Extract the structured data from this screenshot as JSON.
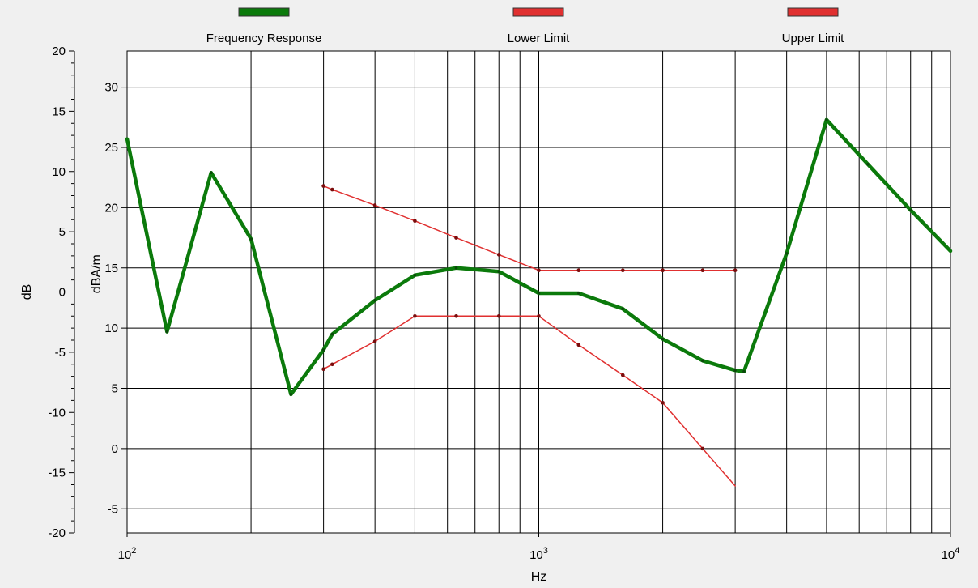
{
  "chart_data": {
    "type": "line",
    "x_scale": "log",
    "xlim": [
      100,
      10000
    ],
    "grid": true,
    "legend_position": "top",
    "xlabel": "Hz",
    "y_left_label": "dB",
    "y_right_label": "dBA/m",
    "y_left_lim": [
      -20,
      20
    ],
    "y_right_lim": [
      -7,
      33
    ],
    "x_ticks": [
      {
        "value": 100,
        "base": "10",
        "exp": "2"
      },
      {
        "value": 1000,
        "base": "10",
        "exp": "3"
      },
      {
        "value": 10000,
        "base": "10",
        "exp": "4"
      }
    ],
    "y_left_ticks": [
      "20",
      "15",
      "10",
      "5",
      "0",
      "-5",
      "-10",
      "-15",
      "-20"
    ],
    "y_left_tick_values": [
      20,
      15,
      10,
      5,
      0,
      -5,
      -10,
      -15,
      -20
    ],
    "y_right_ticks": [
      "30",
      "25",
      "20",
      "15",
      "10",
      "5",
      "0",
      "-5"
    ],
    "y_right_tick_values": [
      30,
      25,
      20,
      15,
      10,
      5,
      0,
      -5
    ],
    "series": [
      {
        "name": "Frequency Response",
        "axis": "left",
        "color": "#0b7a0b",
        "width": 4.5,
        "x": [
          100,
          125,
          160,
          200,
          250,
          300,
          315,
          400,
          500,
          630,
          800,
          1000,
          1250,
          1600,
          2000,
          2500,
          3000,
          3150,
          4000,
          5000,
          6300,
          8000,
          10000
        ],
        "y": [
          12.7,
          -3.3,
          9.9,
          4.4,
          -8.5,
          -4.8,
          -3.5,
          -0.7,
          1.4,
          2.0,
          1.7,
          -0.1,
          -0.1,
          -1.4,
          -3.9,
          -5.7,
          -6.5,
          -6.6,
          3.2,
          14.3,
          10.6,
          6.8,
          3.4
        ]
      },
      {
        "name": "Lower Limit",
        "axis": "right",
        "color": "#e03030",
        "width": 1.5,
        "x": [
          300,
          315,
          400,
          500,
          630,
          800,
          1000,
          1250,
          1600,
          2000,
          2500,
          3000
        ],
        "y": [
          6.6,
          7.0,
          8.9,
          11.0,
          11.0,
          11.0,
          11.0,
          8.6,
          6.1,
          3.8,
          0.0,
          -3.1
        ]
      },
      {
        "name": "Upper Limit",
        "axis": "right",
        "color": "#e03030",
        "width": 1.5,
        "x": [
          300,
          315,
          400,
          500,
          630,
          800,
          1000,
          1250,
          1600,
          2000,
          2500,
          3000
        ],
        "y": [
          21.8,
          21.5,
          20.2,
          18.9,
          17.5,
          16.1,
          14.8,
          14.8,
          14.8,
          14.8,
          14.8,
          14.8
        ]
      }
    ]
  }
}
